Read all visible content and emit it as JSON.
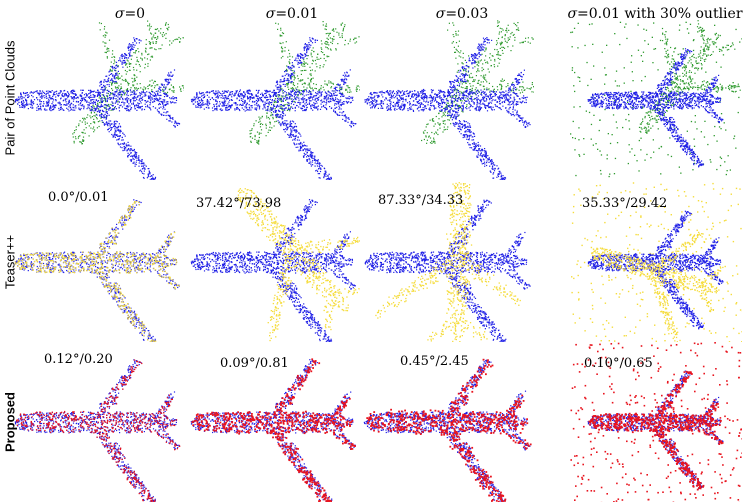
{
  "columns": [
    {
      "symbol": "σ",
      "rest": "=0"
    },
    {
      "symbol": "σ",
      "rest": "=0.01"
    },
    {
      "symbol": "σ",
      "rest": "=0.03"
    },
    {
      "symbol": "σ",
      "rest": "=0.01 with 30% outlier"
    }
  ],
  "rows": [
    {
      "label": "Pair of Point Clouds",
      "bold": false,
      "overlay_color": "#2e9a2e",
      "metrics": [
        "",
        "",
        "",
        ""
      ]
    },
    {
      "label": "Teaser++",
      "bold": false,
      "overlay_color": "#f5dc3c",
      "metrics": [
        "0.0°/0.01",
        "37.42°/73.98",
        "87.33°/34.33",
        "35.33°/29.42"
      ]
    },
    {
      "label": "Proposed",
      "bold": true,
      "overlay_color": "#e8141e",
      "metrics": [
        "0.12°/0.20",
        "0.09°/0.81",
        "0.45°/2.45",
        "0.10°/0.65"
      ]
    }
  ],
  "colors": {
    "source": "#1f1fe6",
    "green": "#2e9a2e",
    "yellow": "#f5dc3c",
    "red": "#e8141e"
  }
}
